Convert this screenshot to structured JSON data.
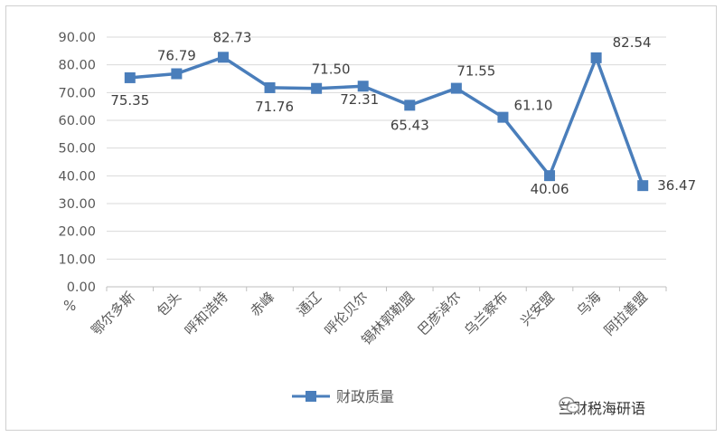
{
  "chart_data": {
    "type": "line",
    "title": "",
    "xlabel": "",
    "ylabel": "%",
    "ylim": [
      0,
      90
    ],
    "yticks": [
      "0.00",
      "10.00",
      "20.00",
      "30.00",
      "40.00",
      "50.00",
      "60.00",
      "70.00",
      "80.00",
      "90.00"
    ],
    "grid": true,
    "legend_position": "bottom",
    "categories": [
      "鄂尔多斯",
      "包头",
      "呼和浩特",
      "赤峰",
      "通辽",
      "呼伦贝尔",
      "锡林郭勒盟",
      "巴彦淖尔",
      "乌兰察布",
      "兴安盟",
      "乌海",
      "阿拉善盟"
    ],
    "series": [
      {
        "name": "财政质量",
        "color": "#4a7ebb",
        "values": [
          75.35,
          76.79,
          82.73,
          71.76,
          71.5,
          72.31,
          65.43,
          71.55,
          61.1,
          40.06,
          82.54,
          36.47
        ],
        "labels": [
          "75.35",
          "76.79",
          "82.73",
          "71.76",
          "71.50",
          "72.31",
          "65.43",
          "71.55",
          "61.10",
          "40.06",
          "82.54",
          "36.47"
        ]
      }
    ]
  },
  "watermark": {
    "text": "兰财税海研语",
    "icon": "wechat-icon"
  }
}
